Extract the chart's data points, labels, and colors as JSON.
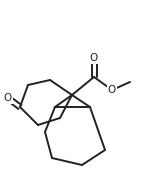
{
  "bg_color": "#ffffff",
  "line_color": "#222222",
  "line_width": 1.4,
  "figsize": [
    1.42,
    1.78
  ],
  "dpi": 100,
  "xlim": [
    0,
    142
  ],
  "ylim": [
    0,
    178
  ]
}
